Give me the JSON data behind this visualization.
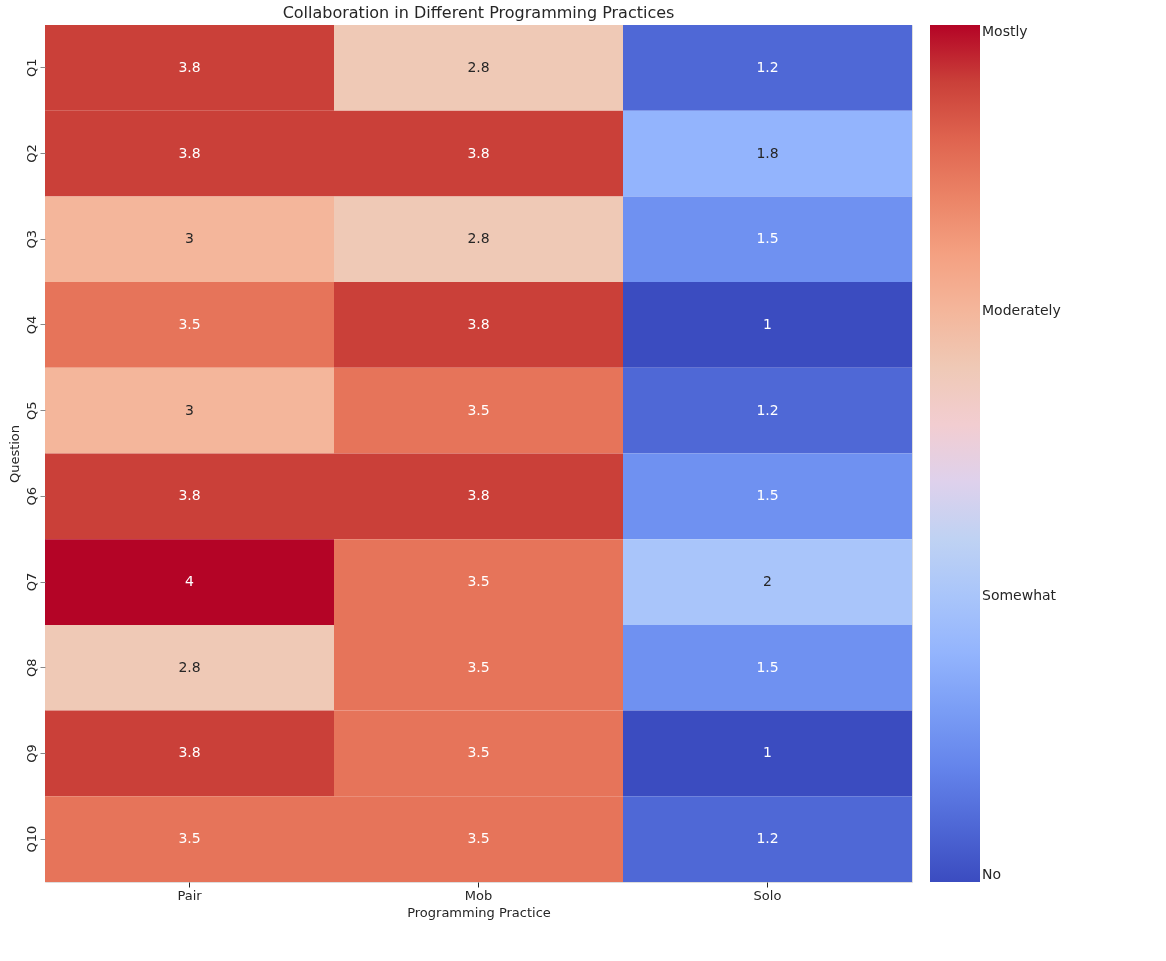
{
  "chart_data": {
    "type": "heatmap",
    "title": "Collaboration in Different Programming Practices",
    "xlabel": "Programming Practice",
    "ylabel": "Question",
    "categories": [
      "Pair",
      "Mob",
      "Solo"
    ],
    "y_categories": [
      "Q1",
      "Q2",
      "Q3",
      "Q4",
      "Q5",
      "Q6",
      "Q7",
      "Q8",
      "Q9",
      "Q10"
    ],
    "cells": [
      [
        3.8,
        2.8,
        1.2
      ],
      [
        3.8,
        3.8,
        1.8
      ],
      [
        3,
        2.8,
        1.5
      ],
      [
        3.5,
        3.8,
        1
      ],
      [
        3,
        3.5,
        1.2
      ],
      [
        3.8,
        3.8,
        1.5
      ],
      [
        4,
        3.5,
        2
      ],
      [
        2.8,
        3.5,
        1.5
      ],
      [
        3.8,
        3.5,
        1
      ],
      [
        3.5,
        3.5,
        1.2
      ]
    ],
    "clim": [
      1,
      4
    ],
    "cticks": [
      {
        "value": 1,
        "label": "No"
      },
      {
        "value": 2,
        "label": "Somewhat"
      },
      {
        "value": 3,
        "label": "Moderately"
      },
      {
        "value": 4,
        "label": "Mostly"
      }
    ],
    "data_labels": true
  }
}
